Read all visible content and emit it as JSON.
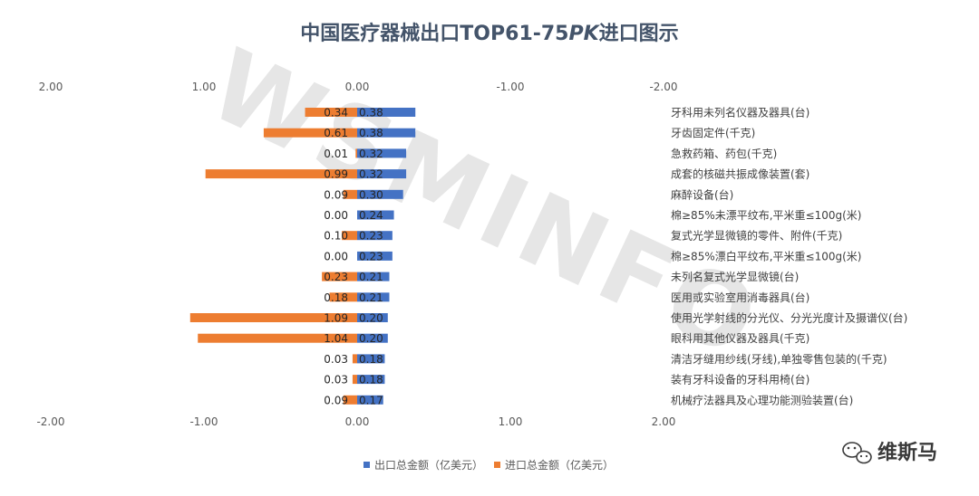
{
  "chart_data": {
    "type": "bar",
    "orientation": "horizontal-butterfly",
    "title_main": "中国医疗器械出口TOP61-75",
    "title_pk": "PK",
    "title_tail": "进口图示",
    "top_ticks": [
      "2.00",
      "1.00",
      "0.00",
      "-1.00",
      "-2.00"
    ],
    "bottom_ticks": [
      "-2.00",
      "-1.00",
      "0.00",
      "1.00",
      "2.00"
    ],
    "xlim": [
      -2,
      2
    ],
    "categories": [
      "牙科用未列名仪器及器具(台)",
      "牙齿固定件(千克)",
      "急救药箱、药包(千克)",
      "成套的核磁共振成像装置(套)",
      "麻醉设备(台)",
      "棉≥85%未漂平纹布,平米重≤100g(米)",
      "复式光学显微镜的零件、附件(千克)",
      "棉≥85%漂白平纹布,平米重≤100g(米)",
      "未列名复式光学显微镜(台)",
      "医用或实验室用消毒器具(台)",
      "使用光学射线的分光仪、分光光度计及摄谱仪(台)",
      "眼科用其他仪器及器具(千克)",
      "清洁牙缝用纱线(牙线),单独零售包装的(千克)",
      "装有牙科设备的牙科用椅(台)",
      "机械疗法器具及心理功能测验装置(台)"
    ],
    "series": [
      {
        "name": "出口总金额（亿美元）",
        "color": "#4472c4",
        "values": [
          0.38,
          0.38,
          0.32,
          0.32,
          0.3,
          0.24,
          0.23,
          0.23,
          0.21,
          0.21,
          0.2,
          0.2,
          0.18,
          0.18,
          0.17
        ],
        "labels": [
          "0.38",
          "0.38",
          "0.32",
          "0.32",
          "0.30",
          "0.24",
          "0.23",
          "0.23",
          "0.21",
          "0.21",
          "0.20",
          "0.20",
          "0.18",
          "0.18",
          "0.17"
        ]
      },
      {
        "name": "进口总金额（亿美元）",
        "color": "#ed7d31",
        "values": [
          0.34,
          0.61,
          0.01,
          0.99,
          0.09,
          0.0,
          0.1,
          0.0,
          0.23,
          0.18,
          1.09,
          1.04,
          0.03,
          0.03,
          0.09
        ],
        "labels": [
          "0.34",
          "0.61",
          "0.01",
          "0.99",
          "0.09",
          "0.00",
          "0.10",
          "0.00",
          "0.23",
          "0.18",
          "1.09",
          "1.04",
          "0.03",
          "0.03",
          "0.09"
        ]
      }
    ],
    "grid": false,
    "legend": "bottom"
  },
  "watermark": "WSMINFO",
  "brand": "维斯马"
}
